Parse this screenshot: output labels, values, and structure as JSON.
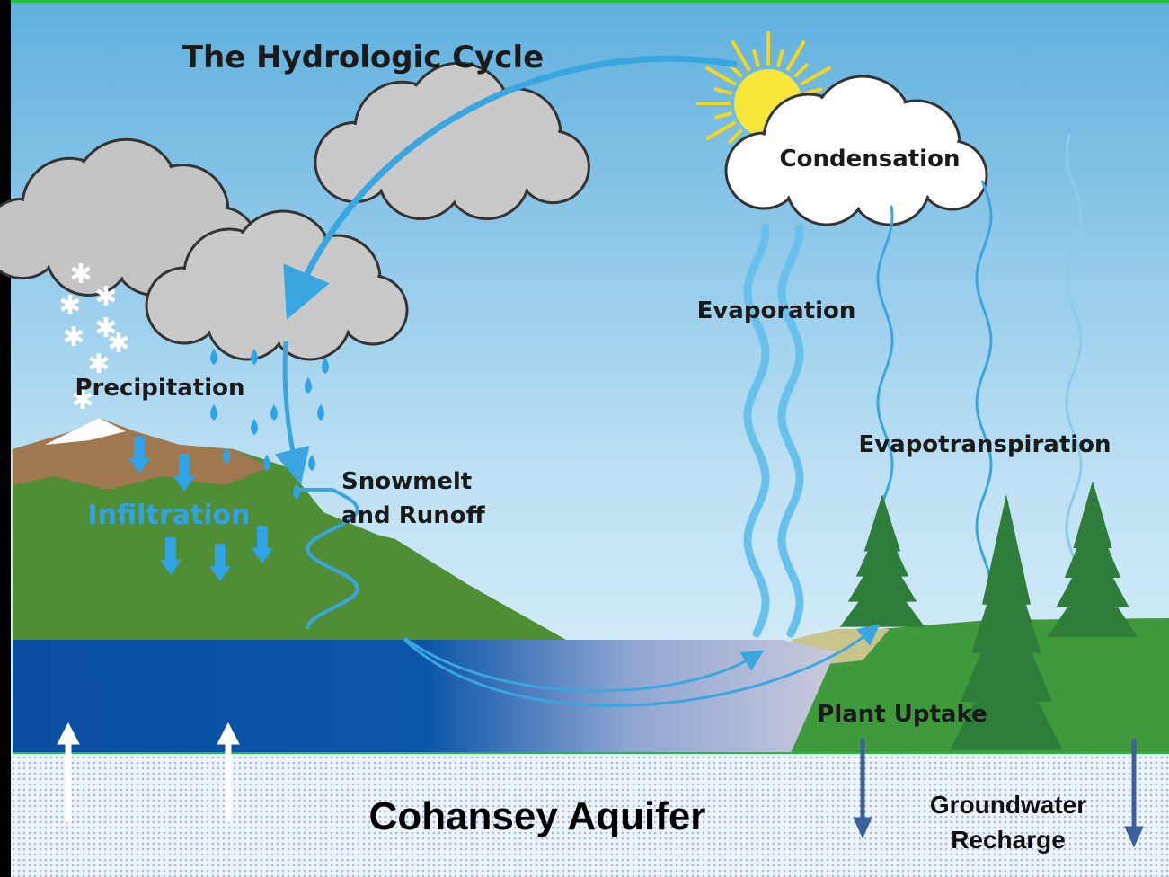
{
  "title": "The Hydrologic Cycle",
  "labels": {
    "condensation": "Condensation",
    "evaporation": "Evaporation",
    "precipitation": "Precipitation",
    "infiltration": "Infiltration",
    "runoff": [
      "Snowmelt",
      "and Runoff"
    ],
    "evapotranspiration": "Evapotranspiration",
    "plant_uptake": "Plant Uptake"
  },
  "aquifer": {
    "name": "Cohansey Aquifer",
    "recharge": [
      "Groundwater",
      "Recharge"
    ]
  }
}
